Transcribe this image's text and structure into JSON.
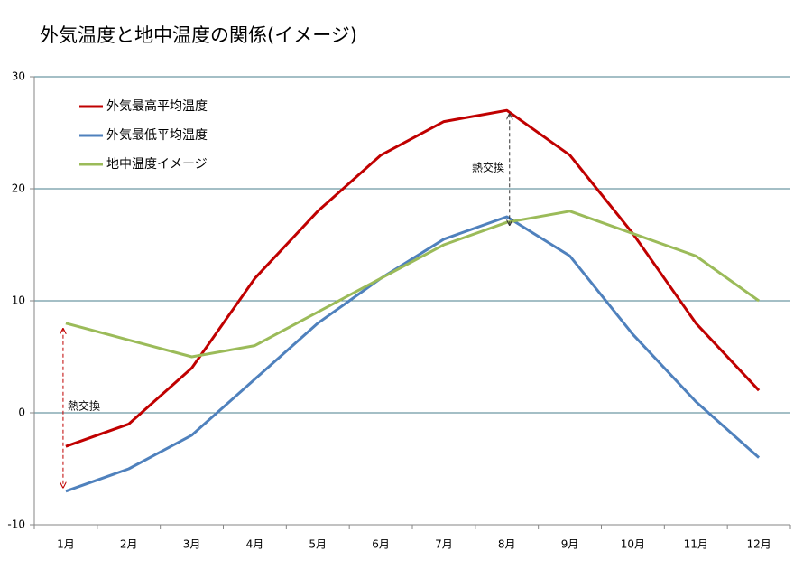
{
  "chart_data": {
    "type": "line",
    "title": "外気温度と地中温度の関係(イメージ)",
    "categories": [
      "1月",
      "2月",
      "3月",
      "4月",
      "5月",
      "6月",
      "7月",
      "8月",
      "9月",
      "10月",
      "11月",
      "12月"
    ],
    "series": [
      {
        "name": "外気最高平均温度",
        "color": "#c00000",
        "values": [
          -3,
          -1,
          4,
          12,
          18,
          23,
          26,
          27,
          23,
          16,
          8,
          2
        ]
      },
      {
        "name": "外気最低平均温度",
        "color": "#4f81bd",
        "values": [
          -7,
          -5,
          -2,
          3,
          8,
          12,
          15.5,
          17.5,
          14,
          7,
          1,
          -4
        ]
      },
      {
        "name": "地中温度イメージ",
        "color": "#9bbb59",
        "values": [
          8,
          6.5,
          5,
          6,
          9,
          12,
          15,
          17,
          18,
          16,
          14,
          10
        ]
      }
    ],
    "ylim": [
      -10,
      30
    ],
    "yticks": [
      -10,
      0,
      10,
      20,
      30
    ],
    "grid": true,
    "legend": "top-left",
    "annotations": [
      "熱交換",
      "熱交換"
    ]
  }
}
